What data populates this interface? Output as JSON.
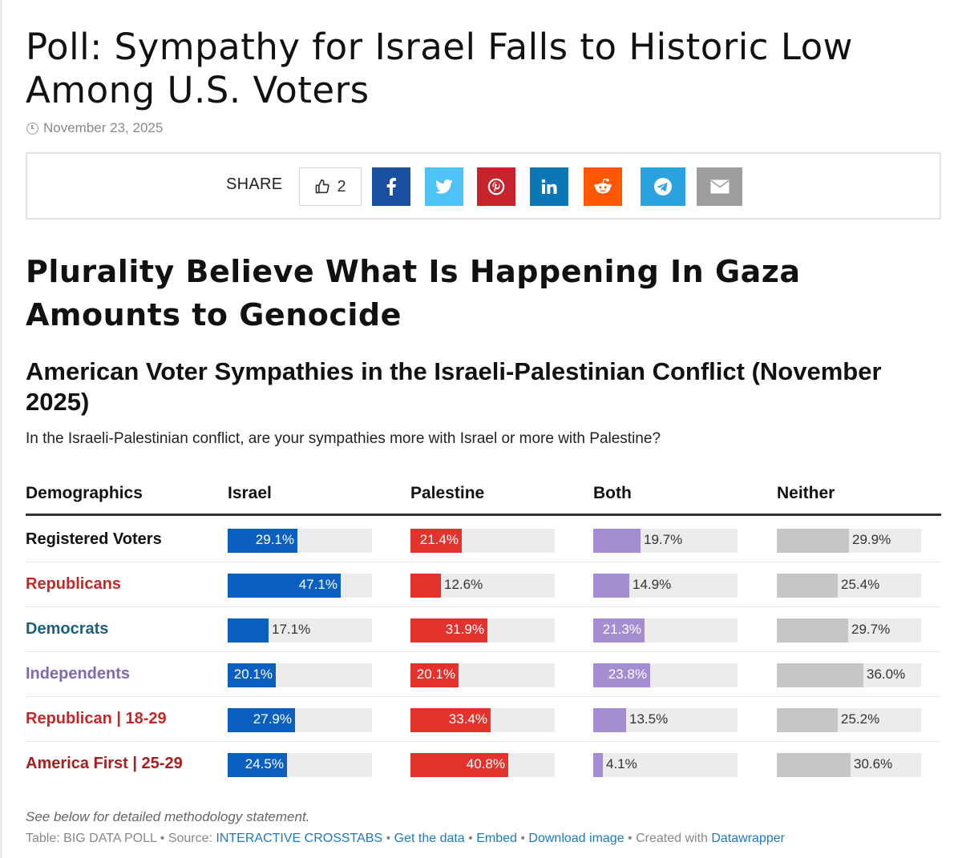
{
  "article": {
    "headline": "Poll: Sympathy for Israel Falls to Historic Low Among U.S. Voters",
    "date": "November 23, 2025",
    "subheadline": "Plurality Believe What Is Happening In Gaza Amounts to Genocide"
  },
  "share": {
    "label": "SHARE",
    "like_count": "2",
    "buttons": [
      {
        "icon": "facebook-icon",
        "color": "#1a4fa0"
      },
      {
        "icon": "twitter-icon",
        "color": "#4fc3f7"
      },
      {
        "icon": "pinterest-icon",
        "color": "#c8232c"
      },
      {
        "icon": "linkedin-icon",
        "color": "#0b77b5"
      },
      {
        "icon": "reddit-icon",
        "color": "#ff5700"
      },
      {
        "icon": "telegram-icon",
        "color": "#2aa3e0"
      },
      {
        "icon": "email-icon",
        "color": "#9e9e9e"
      }
    ]
  },
  "table": {
    "note": "See below for detailed methodology statement.",
    "footer": {
      "prefix": "Table: BIG DATA POLL • Source: ",
      "source_link": "INTERACTIVE CROSSTABS",
      "sep1": " • ",
      "get_data": "Get the data",
      "sep2": " • ",
      "embed": "Embed",
      "sep3": "  • ",
      "download": "Download image",
      "created": " • Created with ",
      "datawrapper": "Datawrapper"
    }
  },
  "chart_data": {
    "type": "table",
    "title": "American Voter Sympathies in the Israeli-Palestinian Conflict (November 2025)",
    "subtitle": "In the Israeli-Palestinian conflict, are your sympathies more with Israel or more with Palestine?",
    "row_header": "Demographics",
    "columns": [
      {
        "name": "Israel",
        "color": "#0b5fbf"
      },
      {
        "name": "Palestine",
        "color": "#e5322d"
      },
      {
        "name": "Both",
        "color": "#a48dd0"
      },
      {
        "name": "Neither",
        "color": "#c6c6c6"
      }
    ],
    "rows": [
      {
        "label": "Registered Voters",
        "color": "#111111",
        "values": [
          29.1,
          21.4,
          19.7,
          29.9
        ],
        "labels": [
          "29.1%",
          "21.4%",
          "19.7%",
          "29.9%"
        ]
      },
      {
        "label": "Republicans",
        "color": "#c62828",
        "values": [
          47.1,
          12.6,
          14.9,
          25.4
        ],
        "labels": [
          "47.1%",
          "12.6%",
          "14.9%",
          "25.4%"
        ]
      },
      {
        "label": "Democrats",
        "color": "#1d5f82",
        "values": [
          17.1,
          31.9,
          21.3,
          29.7
        ],
        "labels": [
          "17.1%",
          "31.9%",
          "21.3%",
          "29.7%"
        ]
      },
      {
        "label": "Independents",
        "color": "#7e6aad",
        "values": [
          20.1,
          20.1,
          23.8,
          36.0
        ],
        "labels": [
          "20.1%",
          "20.1%",
          "23.8%",
          "36.0%"
        ]
      },
      {
        "label": "Republican | 18-29",
        "color": "#c62828",
        "values": [
          27.9,
          33.4,
          13.5,
          25.2
        ],
        "labels": [
          "27.9%",
          "33.4%",
          "13.5%",
          "25.2%"
        ]
      },
      {
        "label": "America First | 25-29",
        "color": "#a81e1e",
        "values": [
          24.5,
          40.8,
          4.1,
          30.6
        ],
        "labels": [
          "24.5%",
          "40.8%",
          "4.1%",
          "30.6%"
        ]
      }
    ],
    "scale_max": 60
  }
}
